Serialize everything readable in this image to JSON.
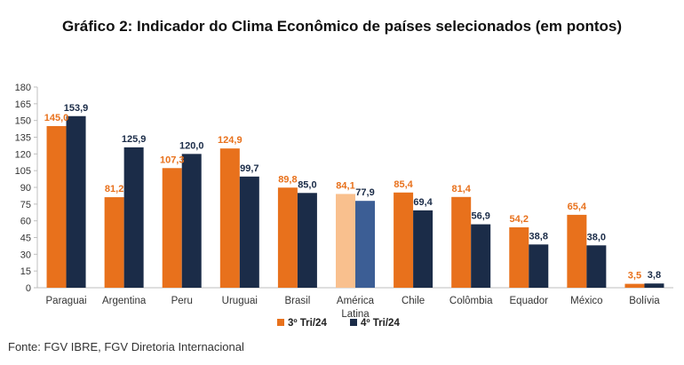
{
  "chart_data": {
    "type": "bar",
    "title": "Gráfico 2: Indicador do Clima Econômico de países selecionados (em pontos)",
    "categories": [
      "Paraguai",
      "Argentina",
      "Peru",
      "Uruguai",
      "Brasil",
      "América Latina",
      "Chile",
      "Colômbia",
      "Equador",
      "México",
      "Bolívia"
    ],
    "series": [
      {
        "name": "3º Tri/24",
        "color": "#E8711C",
        "highlight_color": "#F9C08E",
        "values": [
          145.0,
          81.2,
          107.3,
          124.9,
          89.8,
          84.1,
          85.4,
          81.4,
          54.2,
          65.4,
          3.5
        ],
        "labels": [
          "145,0",
          "81,2",
          "107,3",
          "124,9",
          "89,8",
          "84,1",
          "85,4",
          "81,4",
          "54,2",
          "65,4",
          "3,5"
        ]
      },
      {
        "name": "4º Tri/24",
        "color": "#1B2C48",
        "highlight_color": "#3C5E95",
        "values": [
          153.9,
          125.9,
          120.0,
          99.7,
          85.0,
          77.9,
          69.4,
          56.9,
          38.8,
          38.0,
          3.8
        ],
        "labels": [
          "153,9",
          "125,9",
          "120,0",
          "99,7",
          "85,0",
          "77,9",
          "69,4",
          "56,9",
          "38,8",
          "38,0",
          "3,8"
        ]
      }
    ],
    "highlight_category": "América Latina",
    "ylim": [
      0,
      180
    ],
    "yticks": [
      "0",
      "15",
      "30",
      "45",
      "60",
      "75",
      "90",
      "105",
      "120",
      "135",
      "150",
      "165",
      "180"
    ],
    "grid": false,
    "legend_position": "bottom-center",
    "label_colors": {
      "3º Tri/24": "#E8711C",
      "4º Tri/24": "#1B2C48"
    }
  },
  "source": "Fonte: FGV IBRE, FGV Diretoria Internacional"
}
